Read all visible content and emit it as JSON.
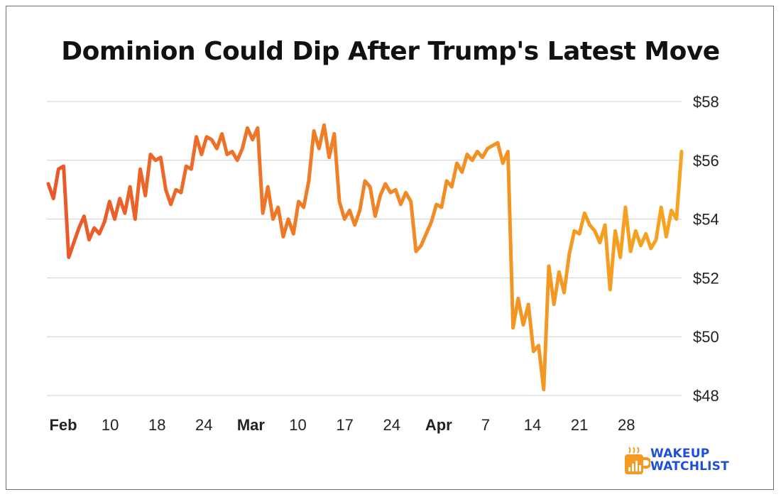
{
  "chart_data": {
    "type": "line",
    "title": "Dominion Could Dip After Trump's Latest Move",
    "ylim": [
      48,
      58
    ],
    "y_ticks": [
      "$48",
      "$50",
      "$52",
      "$54",
      "$56",
      "$58"
    ],
    "x_ticks": [
      {
        "label": "Feb",
        "bold": true
      },
      {
        "label": "10",
        "bold": false
      },
      {
        "label": "18",
        "bold": false
      },
      {
        "label": "24",
        "bold": false
      },
      {
        "label": "Mar",
        "bold": true
      },
      {
        "label": "10",
        "bold": false
      },
      {
        "label": "17",
        "bold": false
      },
      {
        "label": "24",
        "bold": false
      },
      {
        "label": "Apr",
        "bold": true
      },
      {
        "label": "7",
        "bold": false
      },
      {
        "label": "14",
        "bold": false
      },
      {
        "label": "21",
        "bold": false
      },
      {
        "label": "28",
        "bold": false
      }
    ],
    "grid": true,
    "y_axis_position": "right",
    "line_gradient": [
      "#e9572a",
      "#f28c25",
      "#f6a51f"
    ],
    "series": [
      {
        "values": [
          55.2,
          54.7,
          55.7,
          55.8,
          52.7,
          53.2,
          53.7,
          54.1,
          53.3,
          53.7,
          53.5,
          53.9,
          54.6,
          54.0,
          54.7,
          54.2,
          55.1,
          54.0,
          55.7,
          54.8,
          56.2,
          56.0,
          56.1,
          55.0,
          54.5,
          55.0,
          54.9,
          55.8,
          55.7,
          56.8,
          56.2,
          56.8,
          56.7,
          56.4,
          56.9,
          56.2,
          56.3,
          56.0,
          56.4,
          57.1,
          56.7,
          57.1,
          54.2,
          55.1,
          54.0,
          54.4,
          53.4,
          54.0,
          53.5,
          54.6,
          54.4,
          55.3,
          57.0,
          56.4,
          57.2,
          56.1,
          56.9,
          54.6,
          54.0,
          54.3,
          53.8,
          54.3,
          55.3,
          55.1,
          54.1,
          54.8,
          55.2,
          54.9,
          55.0,
          54.5,
          54.9,
          54.6,
          52.9,
          53.1,
          53.5,
          53.9,
          54.5,
          54.4,
          55.3,
          55.1,
          55.9,
          55.6,
          56.2,
          56.0,
          56.3,
          56.1,
          56.4,
          56.5,
          56.6,
          55.9,
          56.3,
          50.3,
          51.3,
          50.4,
          51.1,
          49.5,
          49.7,
          48.2,
          52.4,
          51.1,
          52.2,
          51.5,
          52.8,
          53.6,
          53.5,
          54.2,
          53.8,
          53.6,
          53.2,
          53.8,
          51.6,
          53.6,
          52.7,
          54.4,
          52.9,
          53.6,
          53.1,
          53.5,
          53.0,
          53.3,
          54.4,
          53.4,
          54.3,
          54.0,
          56.3
        ]
      }
    ]
  },
  "branding": {
    "logo_line1": "WAKEUP",
    "logo_line2": "WATCHLIST"
  }
}
